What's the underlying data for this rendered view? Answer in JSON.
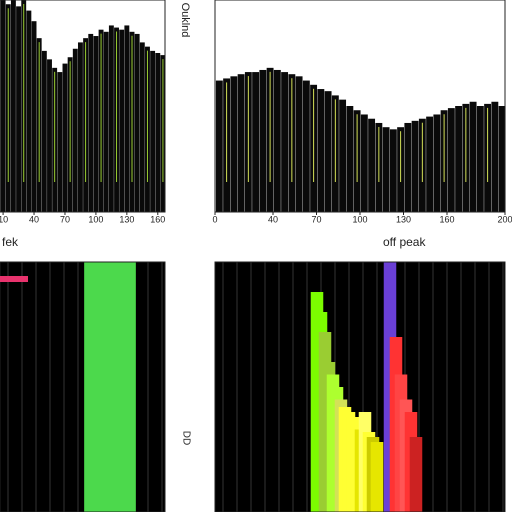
{
  "chart_data": [
    {
      "type": "bar",
      "color": "#0a0a0a",
      "background": "#ffffff",
      "accent": "#9acd32",
      "xlim": [
        7,
        167
      ],
      "ylim": [
        0,
        100
      ],
      "xticks": [
        10,
        40,
        70,
        100,
        130,
        160
      ],
      "x": [
        10,
        15,
        20,
        25,
        30,
        35,
        40,
        45,
        50,
        55,
        60,
        65,
        70,
        75,
        80,
        85,
        90,
        95,
        100,
        105,
        110,
        115,
        120,
        125,
        130,
        135,
        140,
        145,
        150,
        155,
        160,
        165
      ],
      "values": [
        100,
        98,
        100,
        97,
        100,
        95,
        90,
        82,
        76,
        72,
        68,
        66,
        70,
        73,
        77,
        80,
        82,
        84,
        83,
        86,
        85,
        88,
        87,
        86,
        88,
        85,
        84,
        80,
        78,
        76,
        75,
        74
      ]
    },
    {
      "type": "bar",
      "color": "#0a0a0a",
      "background": "#ffffff",
      "accent": "#d4e157",
      "xlim": [
        0,
        200
      ],
      "ylim": [
        0,
        100
      ],
      "xticks": [
        0,
        40,
        70,
        100,
        130,
        160,
        200
      ],
      "x": [
        3,
        8,
        13,
        18,
        23,
        28,
        33,
        38,
        43,
        48,
        53,
        58,
        63,
        68,
        73,
        78,
        83,
        88,
        93,
        98,
        103,
        108,
        113,
        118,
        123,
        128,
        133,
        138,
        143,
        148,
        153,
        158,
        163,
        168,
        173,
        178,
        183,
        188,
        193,
        198
      ],
      "values": [
        62,
        63,
        64,
        65,
        66,
        66,
        67,
        68,
        67,
        66,
        65,
        64,
        62,
        60,
        58,
        57,
        55,
        53,
        50,
        48,
        46,
        44,
        42,
        40,
        39,
        40,
        42,
        43,
        44,
        45,
        46,
        48,
        49,
        50,
        51,
        52,
        50,
        51,
        52,
        50
      ]
    },
    {
      "type": "bar",
      "color": "#4cd94c",
      "background": "#000000",
      "xlim": [
        0,
        165
      ],
      "ylim": [
        0,
        100
      ],
      "x": [
        92,
        96,
        100,
        104,
        108,
        112,
        116,
        120,
        124,
        128
      ],
      "values": [
        100,
        100,
        100,
        100,
        100,
        100,
        100,
        100,
        100,
        100
      ]
    },
    {
      "type": "bar",
      "background": "#000000",
      "xlim": [
        0,
        290
      ],
      "ylim": [
        0,
        100
      ],
      "x": [
        102,
        106,
        110,
        114,
        118,
        122,
        126,
        130,
        134,
        138,
        142,
        146,
        150,
        154,
        158,
        162,
        175,
        181,
        186,
        191,
        196,
        201
      ],
      "values": [
        88,
        80,
        72,
        60,
        55,
        50,
        45,
        42,
        40,
        38,
        35,
        33,
        40,
        32,
        30,
        28,
        100,
        70,
        55,
        45,
        40,
        30
      ],
      "colors": [
        "#7cfc00",
        "#7cfc00",
        "#9acd32",
        "#9acd32",
        "#adff2f",
        "#adff2f",
        "#d4e157",
        "#ffff33",
        "#ffff33",
        "#ffff33",
        "#ffff33",
        "#e6e600",
        "#ffff66",
        "#ffff33",
        "#cccc00",
        "#e6e600",
        "#6a3fd6",
        "#ff3333",
        "#ff4444",
        "#ff5555",
        "#ff3333",
        "#cc2222"
      ]
    }
  ],
  "labels": {
    "top": "Ouklnd",
    "left": "fek",
    "right": "off peak",
    "side": "DD"
  }
}
